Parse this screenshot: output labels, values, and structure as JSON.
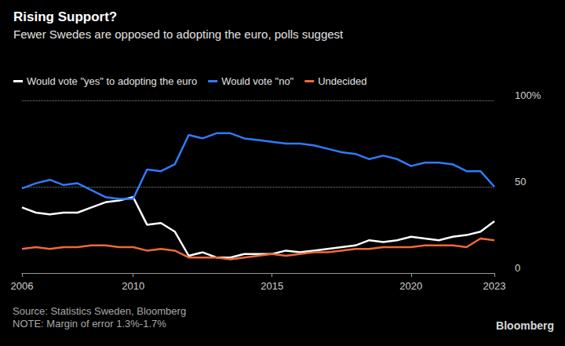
{
  "chart_data": {
    "type": "line",
    "title": "Rising Support?",
    "subtitle": "Fewer Swedes are opposed to adopting the euro, polls suggest",
    "x": [
      2006,
      2006.5,
      2007,
      2007.5,
      2008,
      2008.5,
      2009,
      2009.5,
      2010,
      2010.5,
      2011,
      2011.5,
      2012,
      2012.5,
      2013,
      2013.5,
      2014,
      2014.5,
      2015,
      2015.5,
      2016,
      2016.5,
      2017,
      2017.5,
      2018,
      2018.5,
      2019,
      2019.5,
      2020,
      2020.5,
      2021,
      2021.5,
      2022,
      2022.5,
      2023
    ],
    "series": [
      {
        "name": "Would vote \"yes\" to adopting the euro",
        "color": "#ffffff",
        "values": [
          38,
          35,
          34,
          35,
          35,
          38,
          41,
          42,
          44,
          28,
          29,
          24,
          10,
          12,
          9,
          9,
          11,
          11,
          11,
          13,
          12,
          13,
          14,
          15,
          16,
          19,
          18,
          19,
          21,
          20,
          19,
          21,
          22,
          24,
          30
        ]
      },
      {
        "name": "Would vote \"no\"",
        "color": "#2f7bff",
        "values": [
          49,
          52,
          54,
          51,
          52,
          48,
          44,
          43,
          43,
          60,
          59,
          63,
          80,
          78,
          81,
          81,
          78,
          77,
          76,
          75,
          75,
          74,
          72,
          70,
          69,
          66,
          68,
          66,
          62,
          64,
          64,
          63,
          59,
          59,
          50
        ]
      },
      {
        "name": "Undecided",
        "color": "#f0683a",
        "values": [
          14,
          15,
          14,
          15,
          15,
          16,
          16,
          15,
          15,
          13,
          14,
          13,
          9,
          9,
          9,
          8,
          9,
          10,
          11,
          10,
          11,
          12,
          12,
          13,
          14,
          14,
          15,
          15,
          15,
          16,
          16,
          16,
          15,
          20,
          19
        ]
      }
    ],
    "xlim": [
      2006,
      2023
    ],
    "xticks": [
      2006,
      2010,
      2015,
      2020,
      2023
    ],
    "ylim": [
      0,
      100
    ],
    "yticks": [
      0,
      50,
      {
        "value": 100,
        "label": "100%"
      }
    ],
    "grid": true,
    "legend": "top-left",
    "annotations": [
      "Source: Statistics Sweden, Bloomberg",
      "NOTE: Margin of error 1.3%-1.7%",
      "Bloomberg"
    ]
  }
}
